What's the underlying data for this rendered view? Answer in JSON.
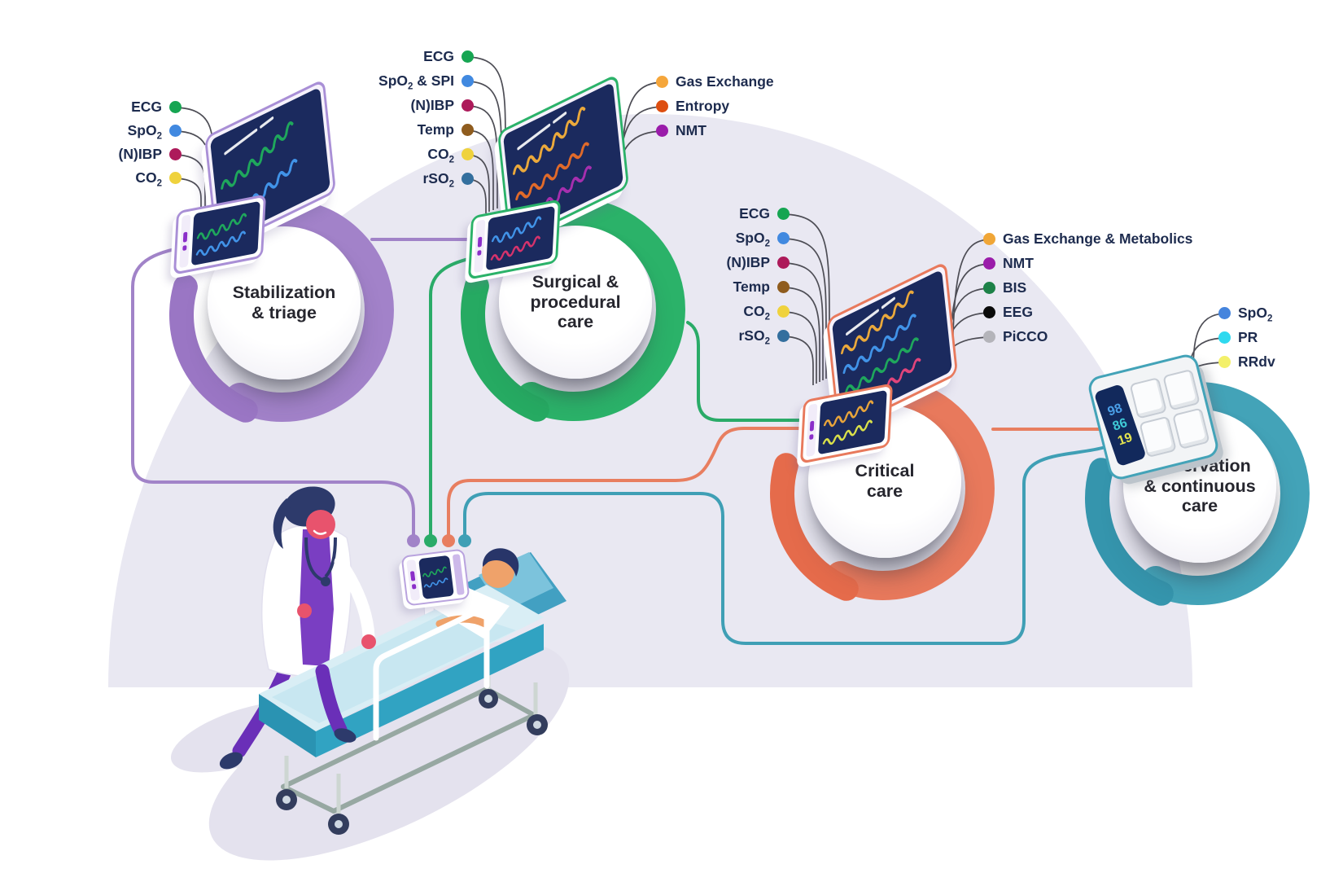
{
  "stages": [
    {
      "id": "stabilization-triage",
      "title": "Stabilization\n& triage",
      "ring_color": "#a282c9",
      "hook_color": "#9a76c4",
      "line_color": "#a183c8",
      "params_left": [
        {
          "label": "ECG",
          "color": "#16a552"
        },
        {
          "label": "SpO~2~",
          "color": "#4189e0"
        },
        {
          "label": "(N)IBP",
          "color": "#ad1a5a"
        },
        {
          "label": "CO~2~",
          "color": "#efd23d"
        }
      ],
      "params_right": []
    },
    {
      "id": "surgical-procedural-care",
      "title": "Surgical &\nprocedural\ncare",
      "ring_color": "#2bb269",
      "hook_color": "#26aa62",
      "line_color": "#2aab68",
      "params_left": [
        {
          "label": "ECG",
          "color": "#16a552"
        },
        {
          "label": "SpO~2~ & SPI",
          "color": "#4189e0"
        },
        {
          "label": "(N)IBP",
          "color": "#ad1a5a"
        },
        {
          "label": "Temp",
          "color": "#8f5c1e"
        },
        {
          "label": "CO~2~",
          "color": "#efd23d"
        },
        {
          "label": "rSO~2~",
          "color": "#336f9e"
        }
      ],
      "params_right": [
        {
          "label": "Gas Exchange",
          "color": "#f5a63b"
        },
        {
          "label": "Entropy",
          "color": "#dd4e10"
        },
        {
          "label": "NMT",
          "color": "#9a1caa"
        }
      ]
    },
    {
      "id": "critical-care",
      "title": "Critical\ncare",
      "ring_color": "#e8795c",
      "hook_color": "#e56b4b",
      "line_color": "#e87e60",
      "params_left": [
        {
          "label": "ECG",
          "color": "#16a552"
        },
        {
          "label": "SpO~2~",
          "color": "#4189e0"
        },
        {
          "label": "(N)IBP",
          "color": "#ad1a5a"
        },
        {
          "label": "Temp",
          "color": "#8f5c1e"
        },
        {
          "label": "CO~2~",
          "color": "#efd23d"
        },
        {
          "label": "rSO~2~",
          "color": "#336f9e"
        }
      ],
      "params_right": [
        {
          "label": "Gas Exchange & Metabolics",
          "color": "#f0a637"
        },
        {
          "label": "NMT",
          "color": "#9a1caa"
        },
        {
          "label": "BIS",
          "color": "#1d8148"
        },
        {
          "label": "EEG",
          "color": "#0a0a0a"
        },
        {
          "label": "PiCCO",
          "color": "#b4b4ba"
        }
      ]
    },
    {
      "id": "observation-continuous-care",
      "title": "Observation\n& continuous\ncare",
      "ring_color": "#43a3b8",
      "hook_color": "#3595ad",
      "line_color": "#3f9fb5",
      "params_left": [],
      "params_right": [
        {
          "label": "SpO~2~",
          "color": "#4584dd"
        },
        {
          "label": "PR",
          "color": "#2ed9ef"
        },
        {
          "label": "RRdv",
          "color": "#f3f06a"
        }
      ]
    }
  ],
  "wearable_display": {
    "readings": [
      {
        "value": "98",
        "color": "#4a9fe8"
      },
      {
        "value": "86",
        "color": "#3fc9d6"
      },
      {
        "value": "19",
        "color": "#e3e34f"
      }
    ]
  }
}
